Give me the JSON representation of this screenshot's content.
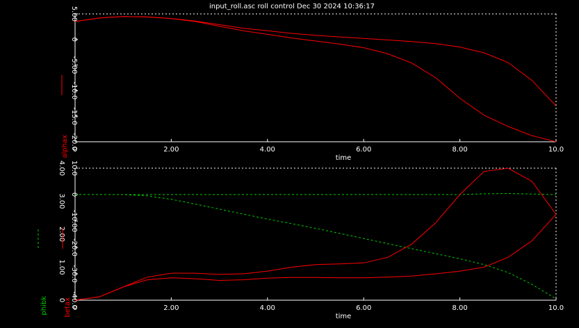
{
  "window": {
    "title": "input_roll.asc roll control  Dec 30 2024 10:36:17"
  },
  "colors": {
    "background": "#000000",
    "axis": "#ffffff",
    "red": "#ff0000",
    "green": "#00cc00"
  },
  "chart_data": [
    {
      "type": "line",
      "xlabel": "time",
      "ylabel": "alphax",
      "xlim": [
        0,
        10
      ],
      "ylim": [
        -20,
        5
      ],
      "xticks": [
        "0",
        "2.00",
        "4.00",
        "6.00",
        "8.00",
        "10.0"
      ],
      "yticks": [
        "-20.0",
        "-15.0",
        "-10.0",
        "-5.00",
        "0",
        "5.00"
      ],
      "grid": false,
      "series": [
        {
          "color": "#ff0000",
          "x": [
            0,
            0.5,
            1,
            1.5,
            2,
            2.5,
            3,
            3.5,
            4,
            4.5,
            5,
            5.5,
            6,
            6.5,
            7,
            7.5,
            8,
            8.5,
            9,
            9.5,
            10
          ],
          "values": [
            3.5,
            4.2,
            4.5,
            4.4,
            4.1,
            3.6,
            2.9,
            2.2,
            1.7,
            1.2,
            0.8,
            0.5,
            0.2,
            -0.1,
            -0.4,
            -0.8,
            -1.5,
            -2.6,
            -4.5,
            -8.0,
            -13.0
          ]
        },
        {
          "color": "#ff0000",
          "x": [
            0,
            0.5,
            1,
            1.5,
            2,
            2.5,
            3,
            3.5,
            4,
            4.5,
            5,
            5.5,
            6,
            6.5,
            7,
            7.5,
            8,
            8.5,
            9,
            9.5,
            10
          ],
          "values": [
            3.5,
            4.2,
            4.5,
            4.4,
            4.1,
            3.5,
            2.6,
            1.7,
            1.0,
            0.3,
            -0.3,
            -0.9,
            -1.6,
            -2.8,
            -4.6,
            -7.5,
            -11.5,
            -14.8,
            -17.0,
            -18.8,
            -20.0
          ]
        }
      ]
    },
    {
      "type": "line",
      "xlabel": "time",
      "ylabel_left": "phibk",
      "ylabel_right": "betax",
      "xlim": [
        0,
        10
      ],
      "ylim_left": [
        -40,
        10
      ],
      "ylim_right": [
        0,
        4
      ],
      "xticks": [
        "0",
        "2.00",
        "4.00",
        "6.00",
        "8.00",
        "10.0"
      ],
      "yticks_left": [
        "-40.0",
        "-30.0",
        "-20.0",
        "-10.00",
        "0",
        "10.0"
      ],
      "yticks_right": [
        "0",
        "1.00",
        "2.00",
        "3.00",
        "4.00"
      ],
      "grid": false,
      "series": [
        {
          "color": "#00cc00",
          "axis": "left",
          "dashed": true,
          "x": [
            0,
            0.5,
            1,
            1.5,
            2,
            2.5,
            3,
            3.5,
            4,
            4.5,
            5,
            5.5,
            6,
            6.5,
            7,
            7.5,
            8,
            8.5,
            9,
            9.5,
            10
          ],
          "values": [
            0,
            0,
            0,
            -0.5,
            -1.8,
            -3.6,
            -5.5,
            -7.4,
            -9.3,
            -11.0,
            -12.8,
            -14.7,
            -16.6,
            -18.6,
            -20.5,
            -22.4,
            -24.3,
            -26.5,
            -29.5,
            -34.0,
            -39.5
          ]
        },
        {
          "color": "#00cc00",
          "axis": "left",
          "dashed": true,
          "x": [
            0,
            1,
            2,
            3,
            4,
            5,
            6,
            7,
            8,
            8.5,
            9,
            9.5,
            10
          ],
          "values": [
            0,
            0,
            0,
            0,
            0,
            0,
            0,
            0,
            0,
            0.3,
            0.4,
            0.2,
            0
          ]
        },
        {
          "color": "#ff0000",
          "axis": "right",
          "x": [
            0,
            0.5,
            1,
            1.5,
            2,
            2.5,
            3,
            3.5,
            4,
            4.5,
            5,
            5.5,
            6,
            6.5,
            7,
            7.5,
            8,
            8.5,
            9,
            9.5,
            10
          ],
          "values": [
            0,
            0.1,
            0.4,
            0.7,
            0.82,
            0.82,
            0.78,
            0.8,
            0.88,
            1.0,
            1.08,
            1.1,
            1.13,
            1.3,
            1.7,
            2.35,
            3.2,
            3.9,
            4.0,
            3.6,
            2.6
          ]
        },
        {
          "color": "#ff0000",
          "axis": "right",
          "x": [
            0,
            0.5,
            1,
            1.5,
            2,
            2.5,
            3,
            3.5,
            4,
            4.5,
            5,
            5.5,
            6,
            6.5,
            7,
            7.5,
            8,
            8.5,
            9,
            9.5,
            10
          ],
          "values": [
            0,
            0.1,
            0.4,
            0.62,
            0.68,
            0.65,
            0.6,
            0.62,
            0.67,
            0.69,
            0.69,
            0.68,
            0.68,
            0.7,
            0.73,
            0.8,
            0.88,
            1.0,
            1.3,
            1.8,
            2.6
          ]
        }
      ]
    }
  ]
}
